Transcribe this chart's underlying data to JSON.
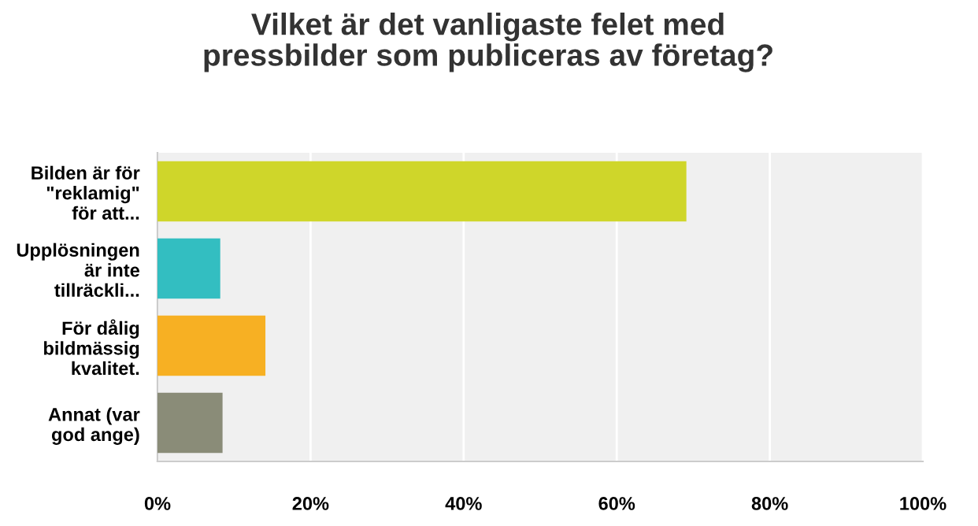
{
  "chart_data": {
    "type": "bar",
    "orientation": "horizontal",
    "title": "Vilket är det vanligaste felet med\npressbilder som publiceras av företag?",
    "categories": [
      "Bilden är för\n\"reklamig\"\nför att...",
      "Upplösningen\när inte\ntillräckli...",
      "För dålig\nbildmässig\nkvalitet.",
      "Annat (var\ngod ange)"
    ],
    "values": [
      69.1,
      8.2,
      14.1,
      8.5
    ],
    "colors": [
      "#cfd62a",
      "#33bec1",
      "#f7b023",
      "#8a8c78"
    ],
    "xlim": [
      0,
      100
    ],
    "xticks": [
      {
        "value": 0,
        "label": "0%"
      },
      {
        "value": 20,
        "label": "20%"
      },
      {
        "value": 40,
        "label": "40%"
      },
      {
        "value": 60,
        "label": "60%"
      },
      {
        "value": 80,
        "label": "80%"
      },
      {
        "value": 100,
        "label": "100%"
      }
    ],
    "grid": "x",
    "legend": false
  }
}
